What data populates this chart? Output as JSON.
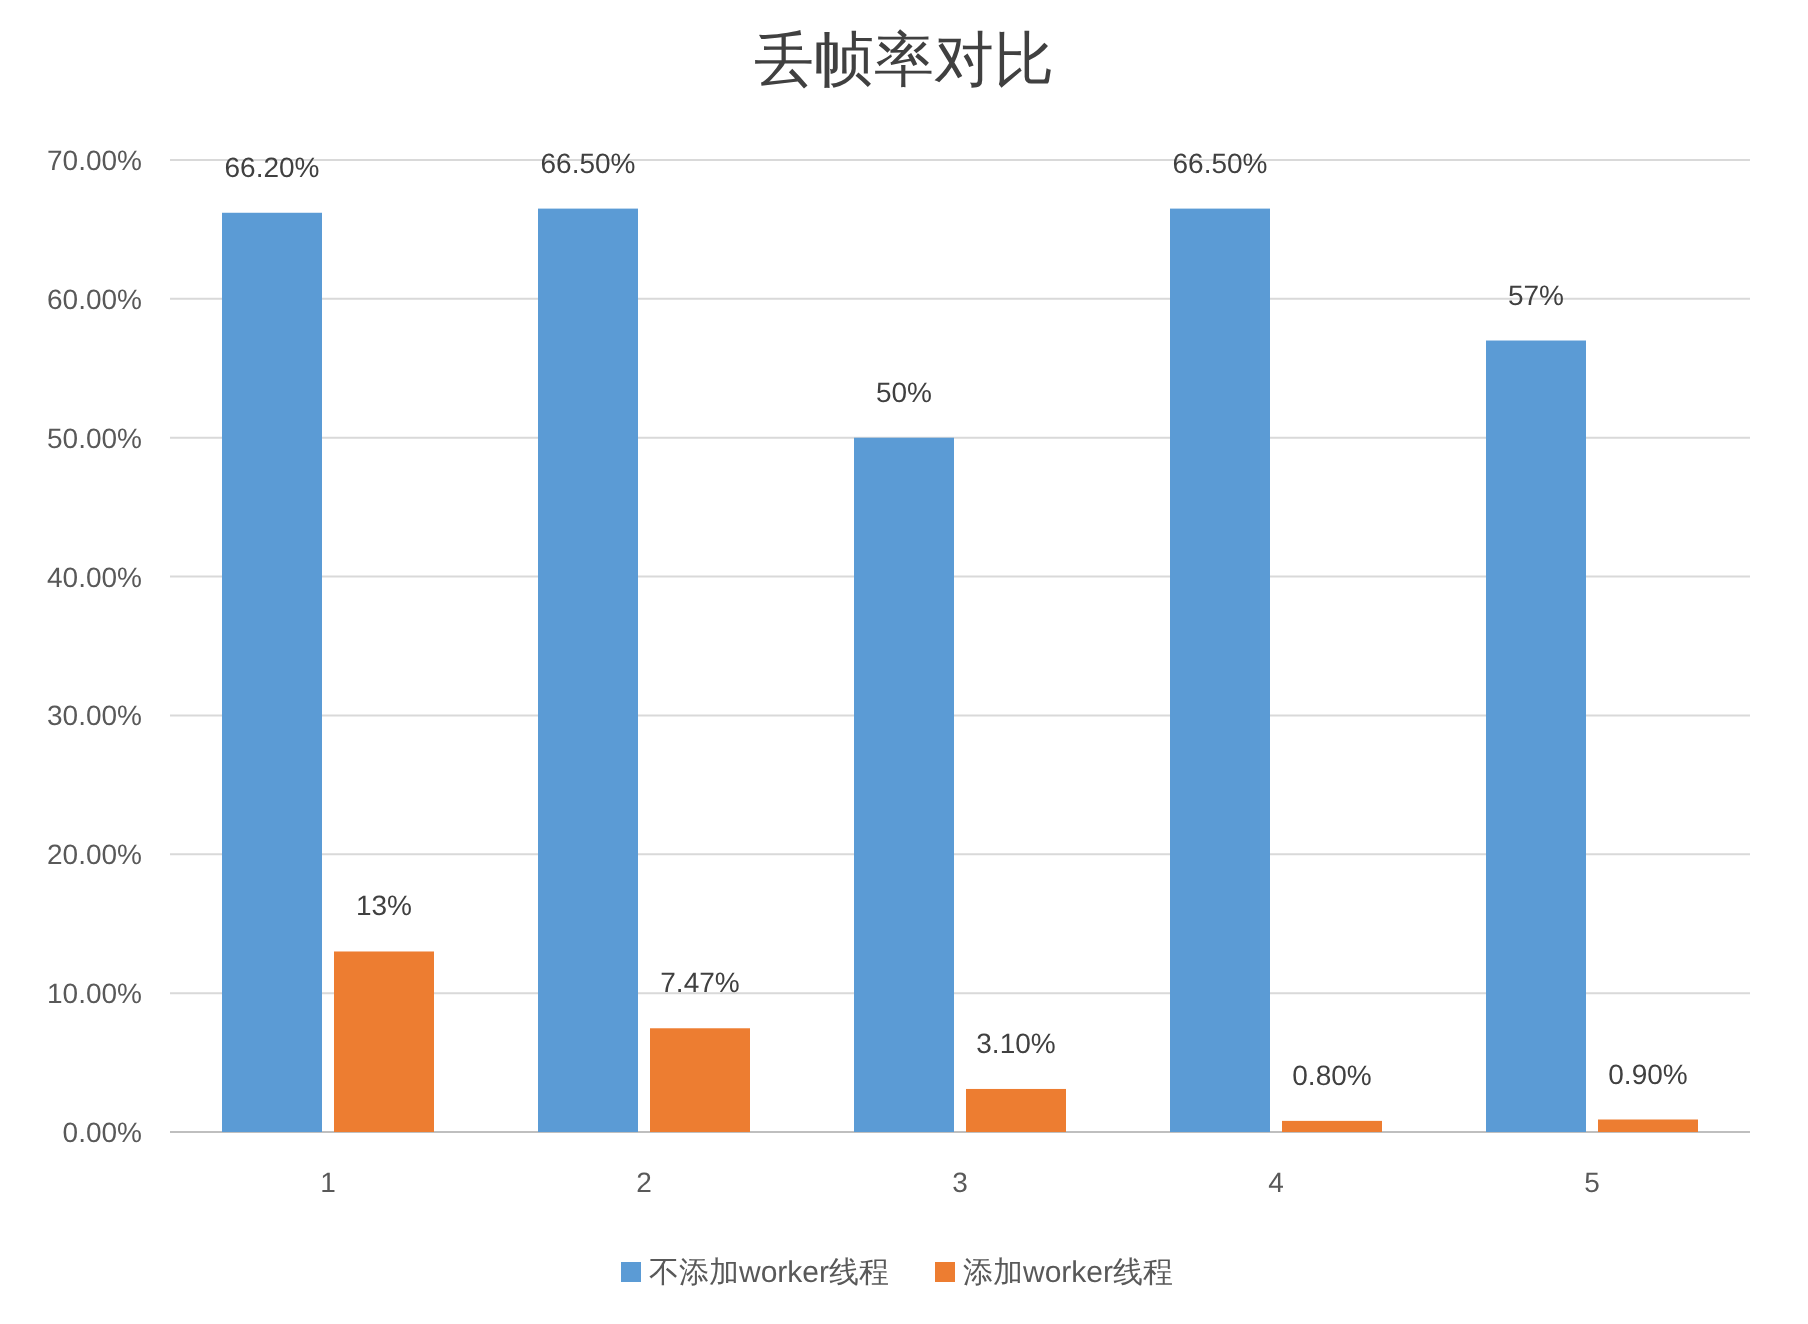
{
  "chart_data": {
    "type": "bar",
    "title": "丢帧率对比",
    "categories": [
      "1",
      "2",
      "3",
      "4",
      "5"
    ],
    "series": [
      {
        "name": "不添加worker线程",
        "color": "#5b9bd5",
        "values": [
          66.2,
          66.5,
          50,
          66.5,
          57
        ],
        "value_labels": [
          "66.20%",
          "66.50%",
          "50%",
          "66.50%",
          "57%"
        ]
      },
      {
        "name": "添加worker线程",
        "color": "#ed7d31",
        "values": [
          13,
          7.47,
          3.1,
          0.8,
          0.9
        ],
        "value_labels": [
          "13%",
          "7.47%",
          "3.10%",
          "0.80%",
          "0.90%"
        ]
      }
    ],
    "ylim": [
      0,
      70
    ],
    "yticks": [
      {
        "value": 0,
        "label": "0.00%"
      },
      {
        "value": 10,
        "label": "10.00%"
      },
      {
        "value": 20,
        "label": "20.00%"
      },
      {
        "value": 30,
        "label": "30.00%"
      },
      {
        "value": 40,
        "label": "40.00%"
      },
      {
        "value": 50,
        "label": "50.00%"
      },
      {
        "value": 60,
        "label": "60.00%"
      },
      {
        "value": 70,
        "label": "70.00%"
      }
    ],
    "grid": "y",
    "legend": "bottom"
  }
}
